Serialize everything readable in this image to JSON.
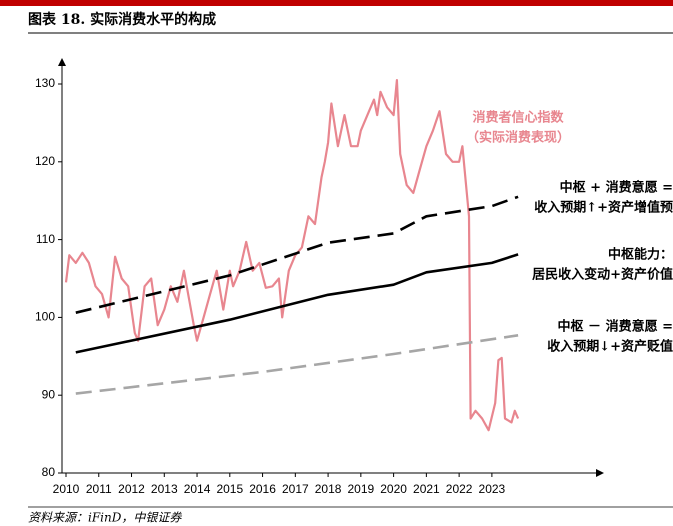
{
  "chart_data": {
    "type": "line",
    "title": "图表 18. 实际消费水平的构成",
    "source": "资料来源：iFinD，中银证券",
    "xlim": [
      2010,
      2026.3
    ],
    "xticks": [
      2010,
      2011,
      2012,
      2013,
      2014,
      2015,
      2016,
      2017,
      2018,
      2019,
      2020,
      2021,
      2022,
      2023
    ],
    "ylim": [
      80,
      130
    ],
    "yticks": [
      80,
      90,
      100,
      110,
      120,
      130
    ],
    "series": [
      {
        "label_lines": [
          "消费者信心指数",
          "（实际消费表现）"
        ],
        "color": "#e8868f",
        "dash": "solid",
        "width": 2.2,
        "x": [
          2010.0,
          2010.1,
          2010.3,
          2010.5,
          2010.7,
          2010.9,
          2011.1,
          2011.3,
          2011.5,
          2011.7,
          2011.9,
          2012.1,
          2012.2,
          2012.4,
          2012.6,
          2012.8,
          2013.0,
          2013.2,
          2013.4,
          2013.6,
          2013.9,
          2014.0,
          2014.2,
          2014.4,
          2014.6,
          2014.8,
          2015.0,
          2015.1,
          2015.3,
          2015.5,
          2015.7,
          2015.9,
          2016.1,
          2016.3,
          2016.5,
          2016.6,
          2016.8,
          2017.0,
          2017.2,
          2017.4,
          2017.6,
          2017.8,
          2017.9,
          2018.0,
          2018.1,
          2018.3,
          2018.5,
          2018.7,
          2018.9,
          2019.0,
          2019.2,
          2019.4,
          2019.5,
          2019.6,
          2019.8,
          2020.0,
          2020.1,
          2020.2,
          2020.4,
          2020.6,
          2020.8,
          2021.0,
          2021.2,
          2021.4,
          2021.6,
          2021.8,
          2022.0,
          2022.1,
          2022.3,
          2022.35,
          2022.5,
          2022.7,
          2022.9,
          2023.1,
          2023.2,
          2023.3,
          2023.4,
          2023.6,
          2023.7,
          2023.8
        ],
        "values": [
          104.5,
          108,
          107,
          108.3,
          107,
          104,
          103,
          100,
          107.8,
          105,
          104,
          98,
          97,
          104,
          105,
          99,
          101,
          104,
          102,
          106,
          99,
          97,
          100,
          103,
          106,
          101,
          106,
          104,
          106,
          109.7,
          106,
          107,
          103.8,
          104,
          105,
          100,
          106,
          108,
          109,
          113,
          112,
          118,
          120,
          122.5,
          127.5,
          122,
          126,
          122,
          122,
          124,
          126,
          128,
          126,
          129,
          127,
          126,
          130.5,
          121,
          117,
          116,
          119,
          122,
          124,
          126.5,
          121,
          120,
          120,
          122,
          113,
          87,
          88,
          87,
          85.5,
          89,
          94.5,
          94.8,
          87,
          86.5,
          88,
          87
        ]
      },
      {
        "label_lines": [
          "中枢 + 消费意愿 =",
          "收入预期↑+资产增值预"
        ],
        "color": "#000000",
        "dash": "dash",
        "width": 2.6,
        "x": [
          2010.3,
          2015,
          2018,
          2020,
          2021,
          2023,
          2023.8
        ],
        "values": [
          100.6,
          105.4,
          109.6,
          110.8,
          113,
          114.3,
          115.5
        ]
      },
      {
        "label_lines": [
          "中枢能力：",
          "居民收入变动+资产价值"
        ],
        "color": "#000000",
        "dash": "solid",
        "width": 2.6,
        "x": [
          2010.3,
          2015,
          2018,
          2020,
          2021,
          2023,
          2023.8
        ],
        "values": [
          95.5,
          99.7,
          102.9,
          104.2,
          105.8,
          107,
          108.1
        ]
      },
      {
        "label_lines": [
          "中枢 － 消费意愿 =",
          "收入预期↓+资产贬值"
        ],
        "color": "#a6a6a6",
        "dash": "dash",
        "width": 2.6,
        "x": [
          2010.3,
          2016,
          2020,
          2023.8
        ],
        "values": [
          90.2,
          93,
          95.3,
          97.7
        ]
      }
    ]
  }
}
